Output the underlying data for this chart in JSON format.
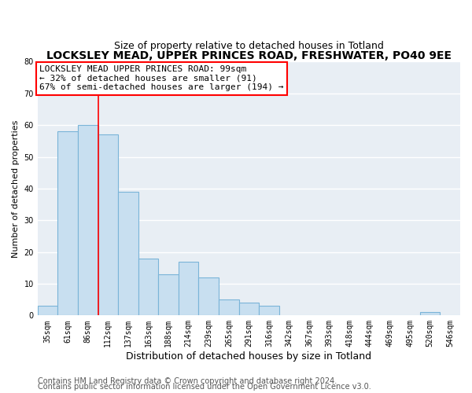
{
  "title": "LOCKSLEY MEAD, UPPER PRINCES ROAD, FRESHWATER, PO40 9EE",
  "subtitle": "Size of property relative to detached houses in Totland",
  "xlabel": "Distribution of detached houses by size in Totland",
  "ylabel": "Number of detached properties",
  "bar_labels": [
    "35sqm",
    "61sqm",
    "86sqm",
    "112sqm",
    "137sqm",
    "163sqm",
    "188sqm",
    "214sqm",
    "239sqm",
    "265sqm",
    "291sqm",
    "316sqm",
    "342sqm",
    "367sqm",
    "393sqm",
    "418sqm",
    "444sqm",
    "469sqm",
    "495sqm",
    "520sqm",
    "546sqm"
  ],
  "bar_values": [
    3,
    58,
    60,
    57,
    39,
    18,
    13,
    17,
    12,
    5,
    4,
    3,
    0,
    0,
    0,
    0,
    0,
    0,
    0,
    1,
    0
  ],
  "bar_color": "#c8dff0",
  "bar_edge_color": "#7ab4d8",
  "ylim": [
    0,
    80
  ],
  "yticks": [
    0,
    10,
    20,
    30,
    40,
    50,
    60,
    70,
    80
  ],
  "red_line_x": 2.52,
  "annotation_text": "LOCKSLEY MEAD UPPER PRINCES ROAD: 99sqm\n← 32% of detached houses are smaller (91)\n67% of semi-detached houses are larger (194) →",
  "footer1": "Contains HM Land Registry data © Crown copyright and database right 2024.",
  "footer2": "Contains public sector information licensed under the Open Government Licence v3.0.",
  "background_color": "#ffffff",
  "plot_bg_color": "#e8eef4",
  "grid_color": "#ffffff",
  "title_fontsize": 10,
  "subtitle_fontsize": 9,
  "xlabel_fontsize": 9,
  "ylabel_fontsize": 8,
  "tick_fontsize": 7,
  "annotation_fontsize": 8,
  "footer_fontsize": 7
}
